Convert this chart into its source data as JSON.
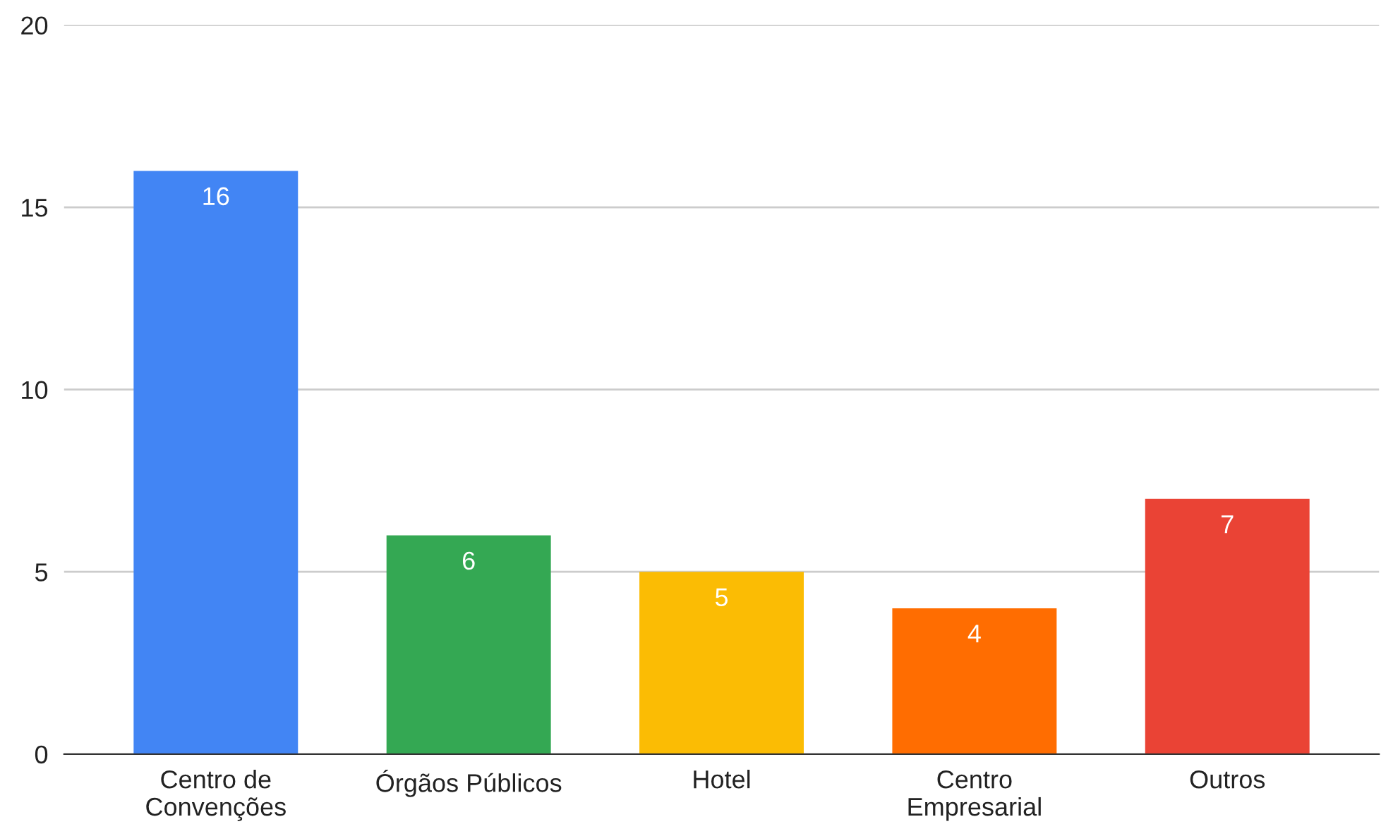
{
  "chart_data": {
    "type": "bar",
    "categories": [
      "Centro de\nConvenções",
      "Órgãos Públicos",
      "Hotel",
      "Centro\nEmpresarial",
      "Outros"
    ],
    "values": [
      16,
      6,
      5,
      4,
      7
    ],
    "colors": [
      "#4285f4",
      "#34a853",
      "#fbbc04",
      "#ff6d01",
      "#ea4335"
    ],
    "ylim": [
      0,
      20
    ],
    "yticks": [
      0,
      5,
      10,
      15,
      20
    ],
    "grid": "y",
    "data_labels": true,
    "legend": false
  }
}
